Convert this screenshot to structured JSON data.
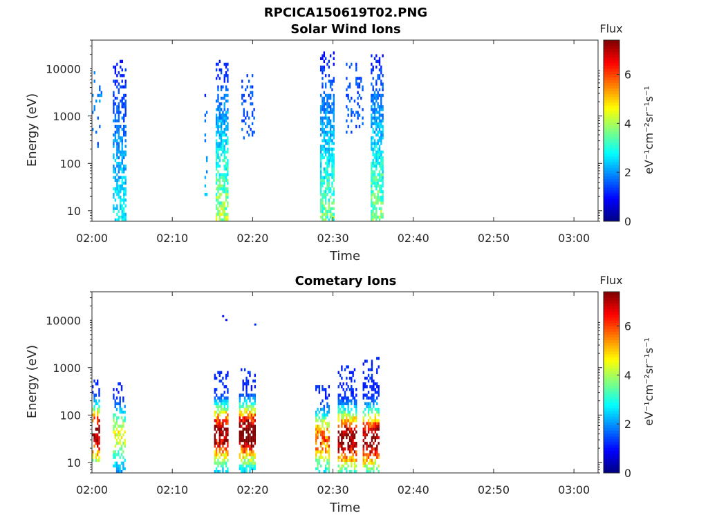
{
  "figure": {
    "title": "RPCICA150619T02.PNG"
  },
  "chart_data": [
    {
      "type": "heatmap",
      "title": "Solar Wind Ions",
      "xlabel": "Time",
      "ylabel": "Energy (eV)",
      "x_ticks": [
        "02:00",
        "02:10",
        "02:20",
        "02:30",
        "02:40",
        "02:50",
        "03:00"
      ],
      "x_range_minutes": [
        0,
        63
      ],
      "y_scale": "log",
      "y_ticks": [
        "10",
        "100",
        "1000",
        "10000"
      ],
      "y_range": [
        6,
        40000
      ],
      "colorbar": {
        "label_top": "Flux",
        "label": "eV⁻¹cm⁻²sr⁻¹s⁻¹",
        "ticks": [
          "0",
          "2",
          "4",
          "6"
        ],
        "range": [
          0,
          7.4
        ],
        "colormap": "jet"
      },
      "bursts": [
        {
          "t_start_min": 0.0,
          "t_end_min": 1.3,
          "e_min": 200,
          "e_max": 15000,
          "flux_low": 1.5,
          "flux_high": 2.2,
          "density": 0.2
        },
        {
          "t_start_min": 2.6,
          "t_end_min": 4.3,
          "e_min": 6,
          "e_max": 15000,
          "flux_low": 2.8,
          "flux_high": 1.0,
          "density": 0.6
        },
        {
          "t_start_min": 14.0,
          "t_end_min": 14.4,
          "e_min": 10,
          "e_max": 5000,
          "flux_low": 2.5,
          "flux_high": 1.2,
          "density": 0.2
        },
        {
          "t_start_min": 15.4,
          "t_end_min": 17.0,
          "e_min": 6,
          "e_max": 15000,
          "flux_low": 4.0,
          "flux_high": 1.0,
          "density": 0.7
        },
        {
          "t_start_min": 18.6,
          "t_end_min": 20.3,
          "e_min": 300,
          "e_max": 10000,
          "flux_low": 1.6,
          "flux_high": 1.4,
          "density": 0.3
        },
        {
          "t_start_min": 28.4,
          "t_end_min": 30.2,
          "e_min": 6,
          "e_max": 22000,
          "flux_low": 3.5,
          "flux_high": 1.0,
          "density": 0.7
        },
        {
          "t_start_min": 31.6,
          "t_end_min": 33.8,
          "e_min": 400,
          "e_max": 15000,
          "flux_low": 1.6,
          "flux_high": 1.4,
          "density": 0.2
        },
        {
          "t_start_min": 34.7,
          "t_end_min": 36.3,
          "e_min": 6,
          "e_max": 20000,
          "flux_low": 3.8,
          "flux_high": 1.0,
          "density": 0.7
        }
      ]
    },
    {
      "type": "heatmap",
      "title": "Cometary Ions",
      "xlabel": "Time",
      "ylabel": "Energy (eV)",
      "x_ticks": [
        "02:00",
        "02:10",
        "02:20",
        "02:30",
        "02:40",
        "02:50",
        "03:00"
      ],
      "x_range_minutes": [
        0,
        63
      ],
      "y_scale": "log",
      "y_ticks": [
        "10",
        "100",
        "1000",
        "10000"
      ],
      "y_range": [
        6,
        40000
      ],
      "colorbar": {
        "label_top": "Flux",
        "label": "eV⁻¹cm⁻²sr⁻¹s⁻¹",
        "ticks": [
          "0",
          "2",
          "4",
          "6"
        ],
        "range": [
          0,
          7.4
        ],
        "colormap": "jet"
      },
      "bursts": [
        {
          "t_start_min": 0.0,
          "t_end_min": 1.0,
          "e_min": 10,
          "e_max": 500,
          "flux_peak": 6.5,
          "e_peak": 40,
          "density": 0.6
        },
        {
          "t_start_min": 2.6,
          "t_end_min": 4.2,
          "e_min": 6,
          "e_max": 500,
          "flux_peak": 3.5,
          "e_peak": 40,
          "density": 0.45
        },
        {
          "t_start_min": 15.2,
          "t_end_min": 17.0,
          "e_min": 6,
          "e_max": 800,
          "flux_peak": 6.5,
          "e_peak": 40,
          "density": 0.7
        },
        {
          "t_start_min": 18.3,
          "t_end_min": 20.4,
          "e_min": 6,
          "e_max": 900,
          "flux_peak": 7.0,
          "e_peak": 40,
          "density": 0.7
        },
        {
          "t_start_min": 27.8,
          "t_end_min": 29.6,
          "e_min": 6,
          "e_max": 400,
          "flux_peak": 4.8,
          "e_peak": 30,
          "density": 0.6
        },
        {
          "t_start_min": 30.6,
          "t_end_min": 33.0,
          "e_min": 6,
          "e_max": 1000,
          "flux_peak": 6.5,
          "e_peak": 30,
          "density": 0.6
        },
        {
          "t_start_min": 33.7,
          "t_end_min": 35.8,
          "e_min": 6,
          "e_max": 1500,
          "flux_peak": 6.5,
          "e_peak": 30,
          "density": 0.55
        }
      ],
      "isolated_points": [
        {
          "t_min": 16.2,
          "e": 12000,
          "flux": 1.0
        },
        {
          "t_min": 16.6,
          "e": 10000,
          "flux": 1.0
        },
        {
          "t_min": 20.2,
          "e": 8000,
          "flux": 1.3
        }
      ]
    }
  ]
}
